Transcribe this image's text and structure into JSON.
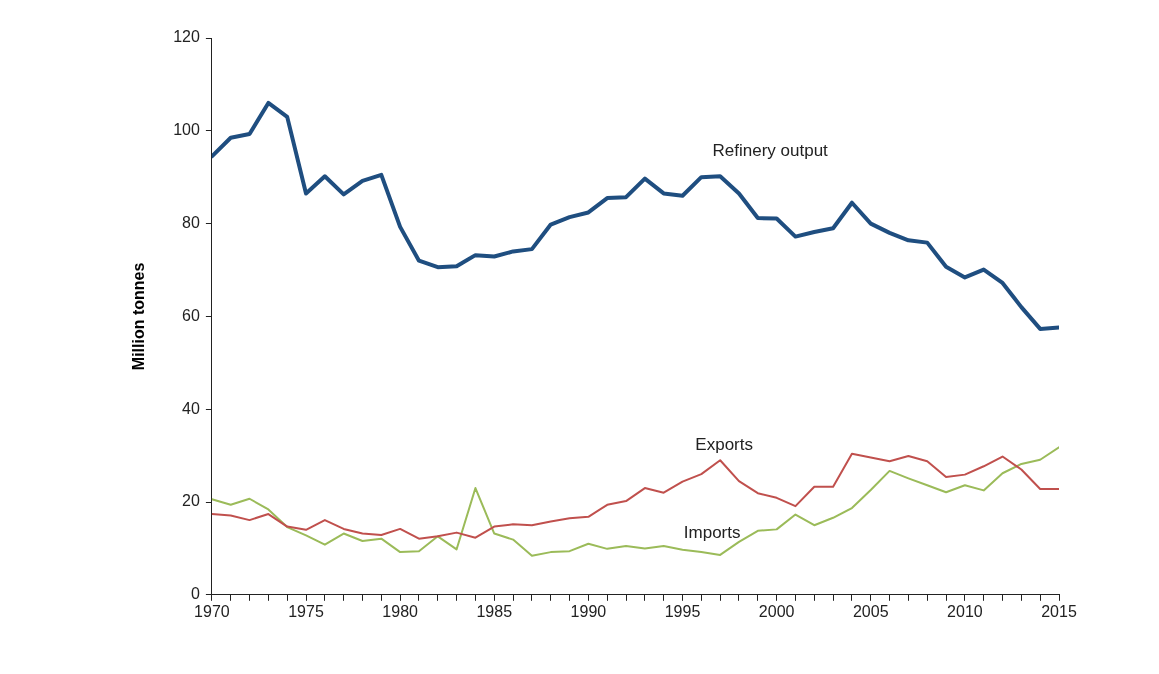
{
  "chart_data": {
    "type": "line",
    "ylabel": "Million tonnes",
    "x": [
      1970,
      1971,
      1972,
      1973,
      1974,
      1975,
      1976,
      1977,
      1978,
      1979,
      1980,
      1981,
      1982,
      1983,
      1984,
      1985,
      1986,
      1987,
      1988,
      1989,
      1990,
      1991,
      1992,
      1993,
      1994,
      1995,
      1996,
      1997,
      1998,
      1999,
      2000,
      2001,
      2002,
      2003,
      2004,
      2005,
      2006,
      2007,
      2008,
      2009,
      2010,
      2011,
      2012,
      2013,
      2014,
      2015
    ],
    "series": [
      {
        "name": "Refinery output",
        "color": "#1f4e80",
        "values": [
          94.5,
          98.5,
          99.3,
          106,
          103,
          86.5,
          90.2,
          86.3,
          89.2,
          90.5,
          79.3,
          72,
          70.6,
          70.8,
          73.2,
          72.9,
          74,
          74.5,
          79.8,
          81.4,
          82.4,
          85.5,
          85.7,
          89.7,
          86.5,
          86,
          90,
          90.2,
          86.5,
          81.2,
          81.1,
          77.2,
          78.2,
          79,
          84.5,
          80,
          78,
          76.4,
          75.9,
          70.7,
          68.4,
          70.1,
          67.2,
          62,
          57.3,
          57.6
        ]
      },
      {
        "name": "Exports",
        "color": "#c0504d",
        "values": [
          17.4,
          17.1,
          16.1,
          17.4,
          14.7,
          14,
          16.1,
          14.2,
          13.2,
          12.9,
          14.2,
          12.1,
          12.6,
          13.4,
          12.3,
          14.7,
          15.2,
          15,
          15.8,
          16.5,
          16.8,
          19.4,
          20.2,
          23,
          22,
          24.4,
          26,
          29,
          24.5,
          21.9,
          20.9,
          19.1,
          23.3,
          23.3,
          30.4,
          29.6,
          28.8,
          29.9,
          28.8,
          25.4,
          25.9,
          27.7,
          29.8,
          27,
          22.8,
          22.8
        ]
      },
      {
        "name": "Imports",
        "color": "#9bbb59",
        "values": [
          20.6,
          19.4,
          20.7,
          18.4,
          14.6,
          12.8,
          10.8,
          13.2,
          11.6,
          12.1,
          9.2,
          9.4,
          12.6,
          9.8,
          23,
          13.2,
          11.9,
          8.4,
          9.2,
          9.4,
          11,
          9.9,
          10.5,
          10,
          10.5,
          9.7,
          9.2,
          8.6,
          11.4,
          13.8,
          14.1,
          17.3,
          15,
          16.6,
          18.7,
          22.6,
          26.7,
          25.1,
          23.6,
          22.1,
          23.6,
          22.5,
          26.2,
          28.2,
          29.1,
          31.8
        ]
      }
    ],
    "xlim": [
      1970,
      2015
    ],
    "xticks": [
      1970,
      {
        "value": 1971,
        "label": null
      },
      {
        "value": 1972,
        "label": null
      },
      {
        "value": 1973,
        "label": null
      },
      {
        "value": 1974,
        "label": null
      },
      1975,
      {
        "value": 1976,
        "label": null
      },
      {
        "value": 1977,
        "label": null
      },
      {
        "value": 1978,
        "label": null
      },
      {
        "value": 1979,
        "label": null
      },
      1980,
      {
        "value": 1981,
        "label": null
      },
      {
        "value": 1982,
        "label": null
      },
      {
        "value": 1983,
        "label": null
      },
      {
        "value": 1984,
        "label": null
      },
      1985,
      {
        "value": 1986,
        "label": null
      },
      {
        "value": 1987,
        "label": null
      },
      {
        "value": 1988,
        "label": null
      },
      {
        "value": 1989,
        "label": null
      },
      1990,
      {
        "value": 1991,
        "label": null
      },
      {
        "value": 1992,
        "label": null
      },
      {
        "value": 1993,
        "label": null
      },
      {
        "value": 1994,
        "label": null
      },
      1995,
      {
        "value": 1996,
        "label": null
      },
      {
        "value": 1997,
        "label": null
      },
      {
        "value": 1998,
        "label": null
      },
      {
        "value": 1999,
        "label": null
      },
      2000,
      {
        "value": 2001,
        "label": null
      },
      {
        "value": 2002,
        "label": null
      },
      {
        "value": 2003,
        "label": null
      },
      {
        "value": 2004,
        "label": null
      },
      2005,
      {
        "value": 2006,
        "label": null
      },
      {
        "value": 2007,
        "label": null
      },
      {
        "value": 2008,
        "label": null
      },
      {
        "value": 2009,
        "label": null
      },
      2010,
      {
        "value": 2011,
        "label": null
      },
      {
        "value": 2012,
        "label": null
      },
      {
        "value": 2013,
        "label": null
      },
      {
        "value": 2014,
        "label": null
      },
      2015
    ],
    "ylim": [
      0,
      120
    ],
    "yticks": [
      0,
      20,
      40,
      60,
      80,
      100,
      120
    ],
    "grid": false,
    "legend": false,
    "marker": "none",
    "line_style": "solid"
  }
}
